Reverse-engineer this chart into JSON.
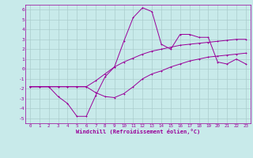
{
  "xlabel": "Windchill (Refroidissement éolien,°C)",
  "ylabel": "",
  "xlim": [
    -0.5,
    23.5
  ],
  "ylim": [
    -5.5,
    6.5
  ],
  "yticks": [
    -5,
    -4,
    -3,
    -2,
    -1,
    0,
    1,
    2,
    3,
    4,
    5,
    6
  ],
  "xticks": [
    0,
    1,
    2,
    3,
    4,
    5,
    6,
    7,
    8,
    9,
    10,
    11,
    12,
    13,
    14,
    15,
    16,
    17,
    18,
    19,
    20,
    21,
    22,
    23
  ],
  "bg_color": "#c8eaea",
  "line_color": "#990099",
  "grid_color": "#aacccc",
  "line1_x": [
    0,
    1,
    2,
    3,
    4,
    5,
    6,
    7,
    8,
    9,
    10,
    11,
    12,
    13,
    14,
    15,
    16,
    17,
    18,
    19,
    20,
    21,
    22,
    23
  ],
  "line1_y": [
    -1.8,
    -1.8,
    -1.8,
    -2.8,
    -3.5,
    -4.8,
    -4.8,
    -2.7,
    -0.8,
    0.2,
    2.8,
    5.2,
    6.2,
    5.8,
    2.5,
    2.0,
    3.5,
    3.5,
    3.2,
    3.2,
    0.7,
    0.5,
    1.0,
    0.5
  ],
  "line2_x": [
    0,
    1,
    2,
    3,
    4,
    5,
    6,
    7,
    8,
    9,
    10,
    11,
    12,
    13,
    14,
    15,
    16,
    17,
    18,
    19,
    20,
    21,
    22,
    23
  ],
  "line2_y": [
    -1.8,
    -1.8,
    -1.8,
    -1.8,
    -1.8,
    -1.8,
    -1.8,
    -1.2,
    -0.5,
    0.2,
    0.7,
    1.1,
    1.5,
    1.8,
    2.0,
    2.2,
    2.4,
    2.5,
    2.6,
    2.7,
    2.8,
    2.9,
    3.0,
    3.0
  ],
  "line3_x": [
    0,
    1,
    2,
    3,
    4,
    5,
    6,
    7,
    8,
    9,
    10,
    11,
    12,
    13,
    14,
    15,
    16,
    17,
    18,
    19,
    20,
    21,
    22,
    23
  ],
  "line3_y": [
    -1.8,
    -1.8,
    -1.8,
    -1.8,
    -1.8,
    -1.8,
    -1.8,
    -2.4,
    -2.8,
    -2.9,
    -2.5,
    -1.8,
    -1.0,
    -0.5,
    -0.2,
    0.2,
    0.5,
    0.8,
    1.0,
    1.2,
    1.3,
    1.4,
    1.5,
    1.6
  ]
}
